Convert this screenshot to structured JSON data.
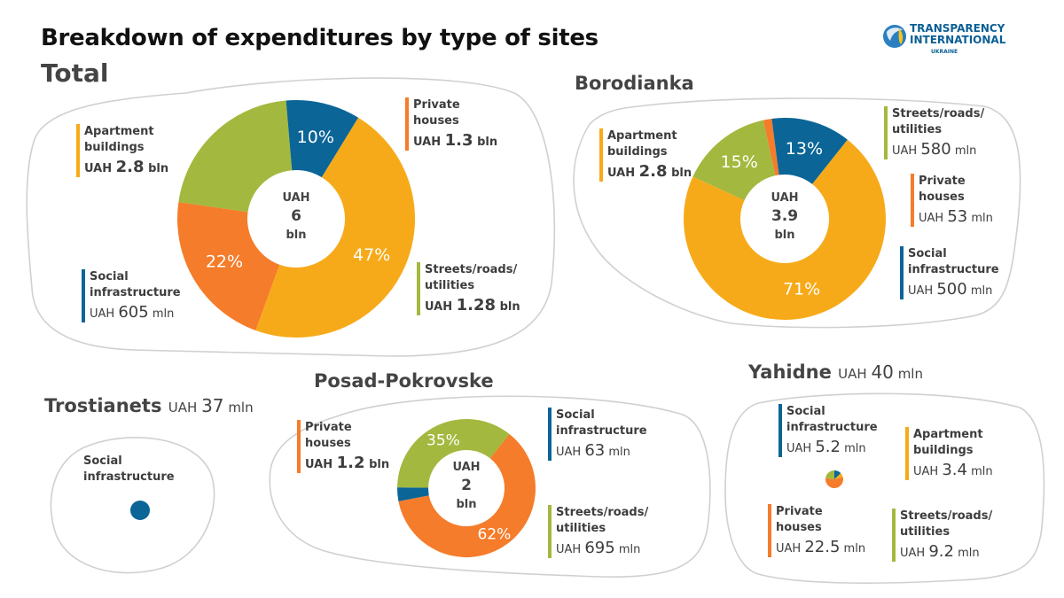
{
  "title": "Breakdown of expenditures by type of sites",
  "colors": {
    "apartment": "#F7AA19",
    "private": "#F57C2A",
    "streets": "#A3B83E",
    "social": "#0B6597",
    "outline": "#CFCFCF"
  },
  "logo": {
    "line1": "TRANSPARENCY",
    "line2": "INTERNATIONAL",
    "line3": "UKRAINE"
  },
  "sections": {
    "total": {
      "heading": "Total",
      "center": [
        "UAH",
        "6",
        "bln"
      ],
      "labels": {
        "apartment": {
          "name": [
            "Apartment",
            "buildings"
          ],
          "unit": "UAH",
          "num": "2.8",
          "suffix": "bln"
        },
        "private": {
          "name": [
            "Private",
            "houses"
          ],
          "unit": "UAH",
          "num": "1.3",
          "suffix": "bln"
        },
        "streets": {
          "name": [
            "Streets/roads/",
            "utilities"
          ],
          "unit": "UAH",
          "num": "1.28",
          "suffix": "bln"
        },
        "social": {
          "name": [
            "Social",
            "infrastructure"
          ],
          "unit": "UAH",
          "num": "605",
          "suffix": "mln"
        }
      }
    },
    "borodianka": {
      "heading": "Borodianka",
      "center": [
        "UAH",
        "3.9",
        "bln"
      ],
      "labels": {
        "apartment": {
          "name": [
            "Apartment",
            "buildings"
          ],
          "unit": "UAH",
          "num": "2.8",
          "suffix": "bln"
        },
        "streets": {
          "name": [
            "Streets/roads/",
            "utilities"
          ],
          "unit": "UAH",
          "num": "580",
          "suffix": "mln"
        },
        "private": {
          "name": [
            "Private",
            "houses"
          ],
          "unit": "UAH",
          "num": "53",
          "suffix": "mln"
        },
        "social": {
          "name": [
            "Social",
            "infrastructure"
          ],
          "unit": "UAH",
          "num": "500",
          "suffix": "mln"
        }
      }
    },
    "trostianets": {
      "heading": "Trostianets",
      "unit": "UAH",
      "num": "37",
      "suffix": "mln",
      "labels": {
        "social": {
          "name": [
            "Social",
            "infrastructure"
          ]
        }
      }
    },
    "posad": {
      "heading": "Posad-Pokrovske",
      "center": [
        "UAH",
        "2",
        "bln"
      ],
      "labels": {
        "private": {
          "name": [
            "Private",
            "houses"
          ],
          "unit": "UAH",
          "num": "1.2",
          "suffix": "bln"
        },
        "social": {
          "name": [
            "Social",
            "infrastructure"
          ],
          "unit": "UAH",
          "num": "63",
          "suffix": "mln"
        },
        "streets": {
          "name": [
            "Streets/roads/",
            "utilities"
          ],
          "unit": "UAH",
          "num": "695",
          "suffix": "mln"
        }
      }
    },
    "yahidne": {
      "heading": "Yahidne",
      "unit": "UAH",
      "num": "40",
      "suffix": "mln",
      "labels": {
        "social": {
          "name": [
            "Social",
            "infrastructure"
          ],
          "unit": "UAH",
          "num": "5.2",
          "suffix": "mln"
        },
        "apartment": {
          "name": [
            "Apartment",
            "buildings"
          ],
          "unit": "UAH",
          "num": "3.4",
          "suffix": "mln"
        },
        "private": {
          "name": [
            "Private",
            "houses"
          ],
          "unit": "UAH",
          "num": "22.5",
          "suffix": "mln"
        },
        "streets": {
          "name": [
            "Streets/roads/",
            "utilities"
          ],
          "unit": "UAH",
          "num": "9.2",
          "suffix": "mln"
        }
      }
    }
  },
  "chart_data": [
    {
      "type": "pie",
      "name": "Total",
      "categories": [
        "Apartment buildings",
        "Private houses",
        "Streets/roads/utilities",
        "Social infrastructure"
      ],
      "values": [
        2800,
        1300,
        1280,
        605
      ],
      "unit": "mln UAH",
      "pct_labels": [
        "47%",
        "22%",
        "",
        "10%"
      ],
      "colors": [
        "#F7AA19",
        "#F57C2A",
        "#A3B83E",
        "#0B6597"
      ],
      "start_category": "Private houses"
    },
    {
      "type": "pie",
      "name": "Borodianka",
      "categories": [
        "Apartment buildings",
        "Streets/roads/utilities",
        "Private houses",
        "Social infrastructure"
      ],
      "values": [
        2800,
        580,
        53,
        500
      ],
      "unit": "mln UAH",
      "pct_labels": [
        "71%",
        "15%",
        "",
        "13%"
      ],
      "colors": [
        "#F7AA19",
        "#A3B83E",
        "#F57C2A",
        "#0B6597"
      ]
    },
    {
      "type": "pie",
      "name": "Posad-Pokrovske",
      "categories": [
        "Private houses",
        "Social infrastructure",
        "Streets/roads/utilities"
      ],
      "values": [
        1200,
        63,
        695
      ],
      "unit": "mln UAH",
      "pct_labels": [
        "62%",
        "",
        "35%"
      ],
      "colors": [
        "#F57C2A",
        "#0B6597",
        "#A3B83E"
      ]
    },
    {
      "type": "pie",
      "name": "Yahidne",
      "categories": [
        "Social infrastructure",
        "Apartment buildings",
        "Private houses",
        "Streets/roads/utilities"
      ],
      "values": [
        5.2,
        3.4,
        22.5,
        9.2
      ],
      "unit": "mln UAH",
      "colors": [
        "#0B6597",
        "#F7AA19",
        "#F57C2A",
        "#A3B83E"
      ]
    },
    {
      "type": "pie",
      "name": "Trostianets",
      "categories": [
        "Social infrastructure"
      ],
      "values": [
        37
      ],
      "unit": "mln UAH",
      "colors": [
        "#0B6597"
      ]
    }
  ]
}
